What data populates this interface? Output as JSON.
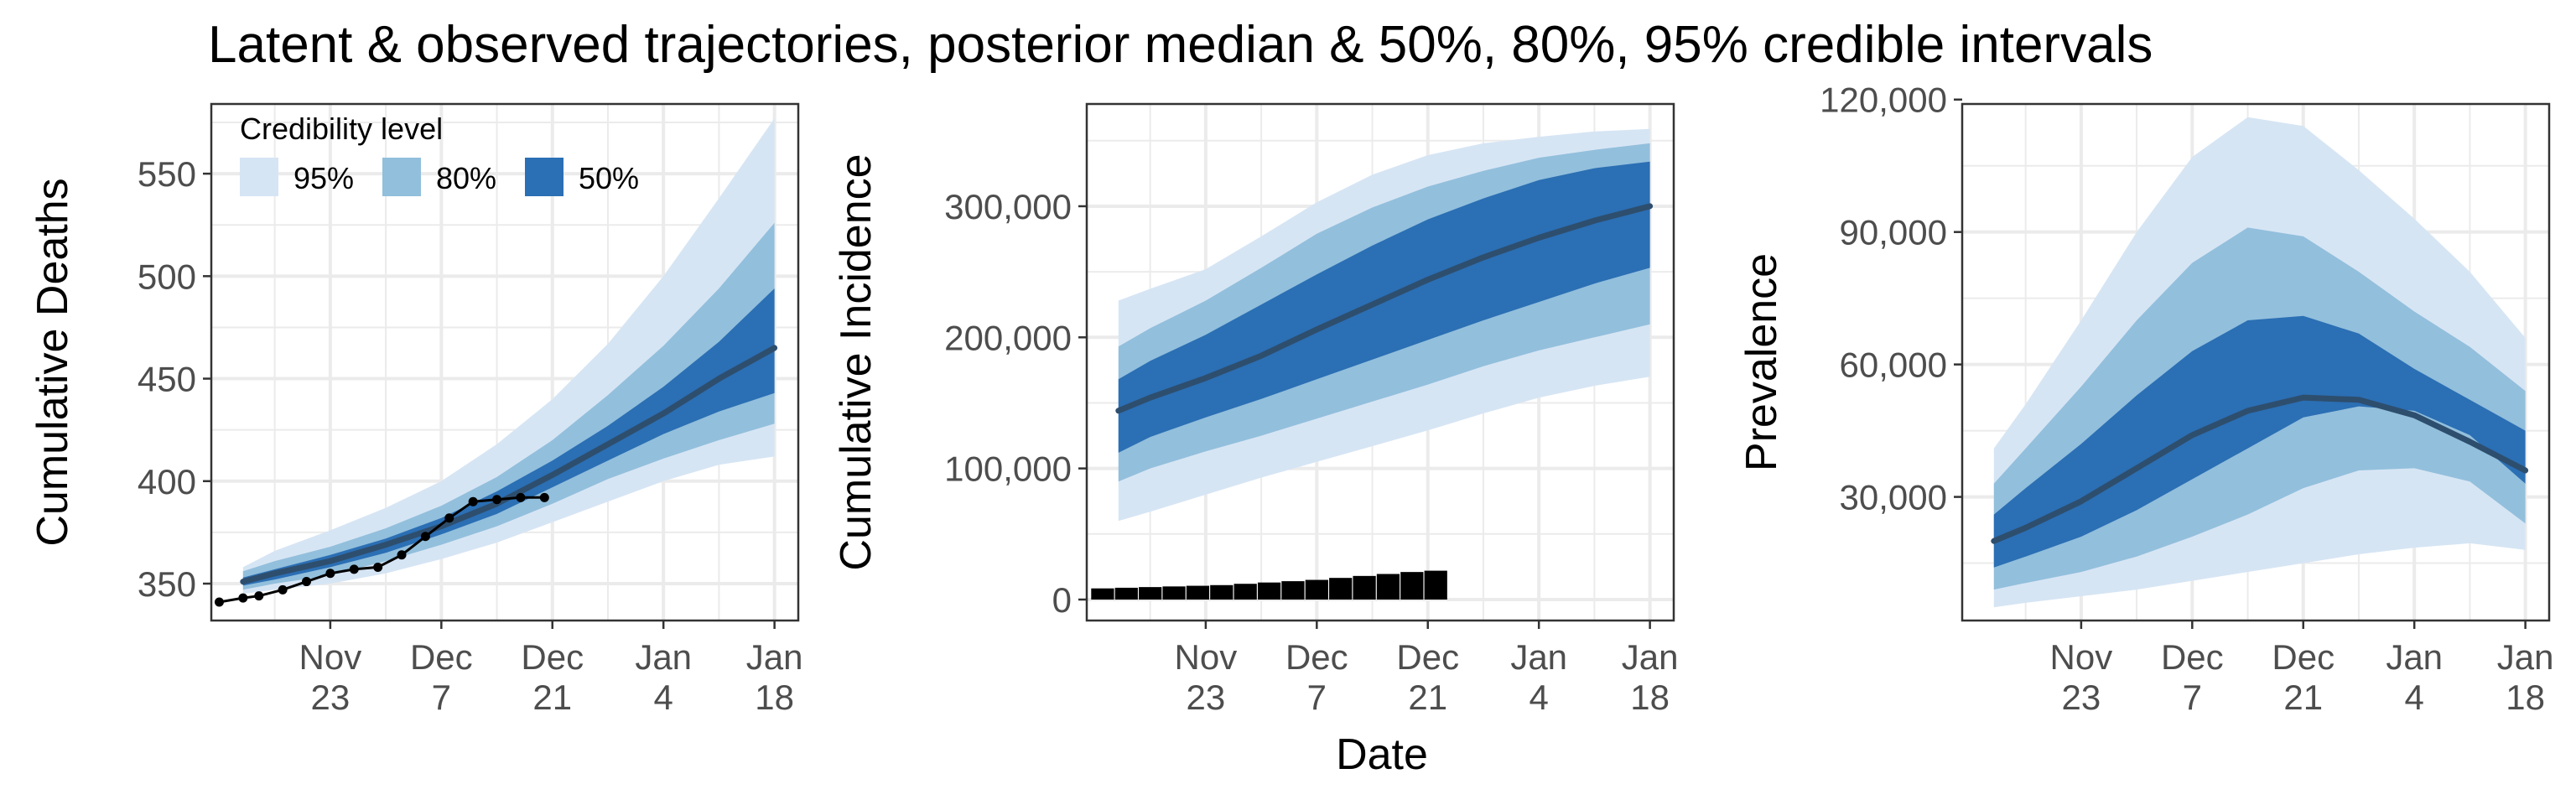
{
  "title": "Latent & observed trajectories, posterior median & 50%, 80%, 95% credible intervals",
  "shared_xlabel": "Date",
  "colors": {
    "band95": "#d6e5f4",
    "band80": "#92bfdc",
    "band50": "#2b6fb4",
    "median": "#2e4e6e",
    "observed": "#000000",
    "grid": "#ebebeb",
    "panel_border": "#333333"
  },
  "legend": {
    "title": "Credibility level",
    "placement": "top-left of first panel",
    "items": [
      {
        "label": "95%",
        "color": "#d6e5f4"
      },
      {
        "label": "80%",
        "color": "#92bfdc"
      },
      {
        "label": "50%",
        "color": "#2b6fb4"
      }
    ]
  },
  "x_ticks": [
    {
      "day": 13,
      "line1": "Nov",
      "line2": "23"
    },
    {
      "day": 27,
      "line1": "Dec",
      "line2": "7"
    },
    {
      "day": 41,
      "line1": "Dec",
      "line2": "21"
    },
    {
      "day": 55,
      "line1": "Jan",
      "line2": "4"
    },
    {
      "day": 69,
      "line1": "Jan",
      "line2": "18"
    }
  ],
  "chart_data": [
    {
      "type": "area",
      "ylabel": "Cumulative Deaths",
      "ylim": [
        332,
        584
      ],
      "xlim": [
        -2,
        72
      ],
      "y_ticks": [
        {
          "v": 350,
          "label": "350"
        },
        {
          "v": 400,
          "label": "400"
        },
        {
          "v": 450,
          "label": "450"
        },
        {
          "v": 500,
          "label": "500"
        },
        {
          "v": 550,
          "label": "550"
        }
      ],
      "x": [
        2,
        6,
        13,
        20,
        27,
        34,
        41,
        48,
        55,
        62,
        69
      ],
      "bands": {
        "q025": [
          345,
          347,
          350,
          355,
          362,
          370,
          380,
          390,
          400,
          408,
          412
        ],
        "q10": [
          347,
          350,
          354,
          361,
          369,
          378,
          389,
          401,
          411,
          420,
          428
        ],
        "q25": [
          349,
          352,
          358,
          365,
          374,
          384,
          397,
          410,
          423,
          434,
          443
        ],
        "q75": [
          353,
          357,
          364,
          372,
          382,
          395,
          410,
          427,
          446,
          468,
          494
        ],
        "q90": [
          356,
          361,
          368,
          377,
          388,
          402,
          420,
          442,
          466,
          494,
          526
        ],
        "q975": [
          358,
          366,
          376,
          387,
          400,
          418,
          440,
          467,
          500,
          538,
          577
        ]
      },
      "median": [
        351,
        355,
        361,
        369,
        378,
        389,
        403,
        418,
        433,
        450,
        465
      ],
      "observed": {
        "x": [
          -1,
          2,
          4,
          7,
          10,
          13,
          16,
          19,
          22,
          25,
          28,
          31,
          34,
          37,
          40
        ],
        "y": [
          341,
          343,
          344,
          347,
          351,
          355,
          357,
          358,
          364,
          373,
          382,
          390,
          391,
          392,
          392
        ]
      }
    },
    {
      "type": "area",
      "ylabel": "Cumulative Incidence",
      "ylim": [
        -16000,
        378000
      ],
      "xlim": [
        -2,
        72
      ],
      "y_ticks": [
        {
          "v": 0,
          "label": "0"
        },
        {
          "v": 100000,
          "label": "100,000"
        },
        {
          "v": 200000,
          "label": "200,000"
        },
        {
          "v": 300000,
          "label": "300,000"
        }
      ],
      "x": [
        2,
        6,
        13,
        20,
        27,
        34,
        41,
        48,
        55,
        62,
        69
      ],
      "bands": {
        "q025": [
          60000,
          67000,
          80000,
          93000,
          105000,
          117000,
          129000,
          142000,
          154000,
          163000,
          170000
        ],
        "q10": [
          90000,
          100000,
          113000,
          125000,
          138000,
          151000,
          164000,
          178000,
          190000,
          200000,
          210000
        ],
        "q25": [
          112000,
          124000,
          139000,
          153000,
          168000,
          183000,
          198000,
          213000,
          227000,
          241000,
          253000
        ],
        "q75": [
          168000,
          182000,
          202000,
          225000,
          248000,
          270000,
          290000,
          306000,
          320000,
          329000,
          334000
        ],
        "q90": [
          193000,
          207000,
          228000,
          253000,
          279000,
          299000,
          315000,
          327000,
          337000,
          343000,
          348000
        ],
        "q975": [
          228000,
          237000,
          252000,
          277000,
          303000,
          324000,
          339000,
          348000,
          353000,
          357000,
          359000
        ]
      },
      "median": [
        144000,
        154000,
        169000,
        186000,
        206000,
        225000,
        244000,
        261000,
        276000,
        289000,
        300000
      ],
      "observed_bars": {
        "x": [
          0,
          3,
          6,
          9,
          12,
          15,
          18,
          21,
          24,
          27,
          30,
          33,
          36,
          39,
          42
        ],
        "y": [
          8500,
          9000,
          9500,
          10000,
          10500,
          11000,
          12000,
          13000,
          14000,
          15000,
          16500,
          18000,
          19500,
          21000,
          22000
        ]
      }
    },
    {
      "type": "area",
      "ylabel": "Prevalence",
      "ylim": [
        2000,
        119000
      ],
      "xlim": [
        -2,
        72
      ],
      "y_ticks": [
        {
          "v": 30000,
          "label": "30,000"
        },
        {
          "v": 60000,
          "label": "60,000"
        },
        {
          "v": 90000,
          "label": "90,000"
        },
        {
          "v": 120000,
          "label": "120,000"
        }
      ],
      "x": [
        2,
        6,
        13,
        20,
        27,
        34,
        41,
        48,
        55,
        62,
        69
      ],
      "bands": {
        "q025": [
          5000,
          6000,
          7500,
          9000,
          11000,
          13000,
          15000,
          17000,
          18500,
          19500,
          18000
        ],
        "q10": [
          9000,
          10500,
          13000,
          16500,
          21000,
          26000,
          32000,
          36000,
          36500,
          33500,
          24000
        ],
        "q25": [
          14000,
          16500,
          21000,
          27000,
          34000,
          41000,
          48000,
          50500,
          49500,
          44000,
          33000
        ],
        "q75": [
          26000,
          32000,
          42000,
          53000,
          63000,
          70000,
          71000,
          67000,
          59000,
          52000,
          45000
        ],
        "q90": [
          33000,
          41000,
          55000,
          70000,
          83000,
          91000,
          89000,
          81000,
          72000,
          64000,
          54000
        ],
        "q975": [
          41000,
          51000,
          70000,
          90000,
          107000,
          116000,
          114000,
          104000,
          93000,
          81000,
          66000
        ]
      },
      "median": [
        20000,
        23000,
        29000,
        36500,
        44000,
        49500,
        52500,
        52000,
        48500,
        42500,
        36000
      ]
    }
  ]
}
